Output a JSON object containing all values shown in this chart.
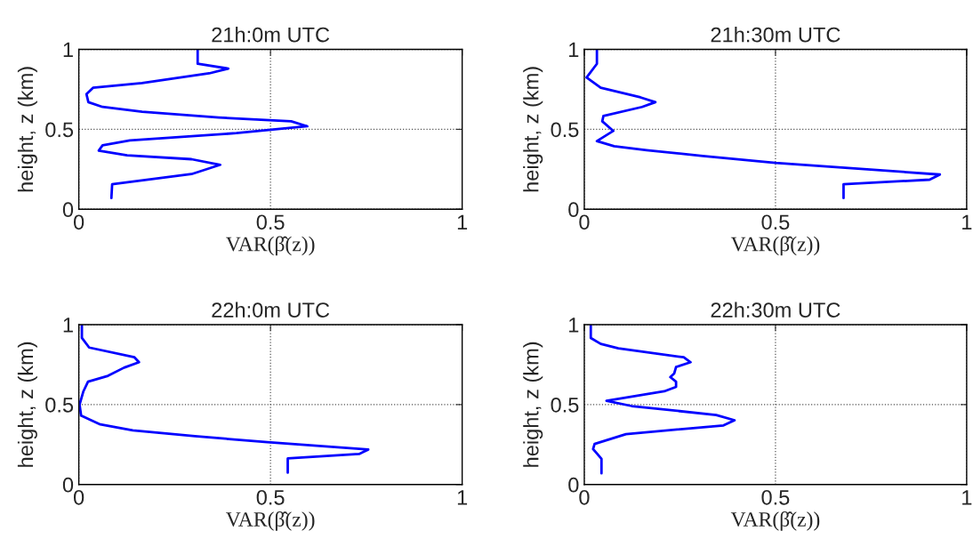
{
  "chart_data": [
    {
      "type": "line",
      "title": "21h:0m UTC",
      "xlabel": "VAR(β̂(z))",
      "ylabel": "height, z (km)",
      "color": "#0000ff",
      "xlim": [
        0,
        1
      ],
      "ylim": [
        0,
        1
      ],
      "xticks": [
        0,
        0.5,
        1
      ],
      "yticks": [
        0,
        0.5,
        1
      ],
      "grid": true,
      "x": [
        0.31,
        0.31,
        0.39,
        0.34,
        0.165,
        0.037,
        0.02,
        0.025,
        0.062,
        0.165,
        0.365,
        0.554,
        0.596,
        0.411,
        0.133,
        0.062,
        0.052,
        0.126,
        0.294,
        0.369,
        0.294,
        0.087,
        0.085
      ],
      "values": [
        1.0,
        0.91,
        0.88,
        0.85,
        0.79,
        0.76,
        0.72,
        0.67,
        0.64,
        0.61,
        0.574,
        0.55,
        0.519,
        0.476,
        0.43,
        0.4,
        0.367,
        0.337,
        0.313,
        0.278,
        0.22,
        0.157,
        0.07
      ]
    },
    {
      "type": "line",
      "title": "21h:30m UTC",
      "xlabel": "VAR(β̂(z))",
      "ylabel": "height, z (km)",
      "color": "#0000ff",
      "xlim": [
        0,
        1
      ],
      "ylim": [
        0,
        1
      ],
      "xticks": [
        0,
        0.5,
        1
      ],
      "yticks": [
        0,
        0.5,
        1
      ],
      "grid": true,
      "x": [
        0.033,
        0.033,
        0.006,
        0.043,
        0.147,
        0.186,
        0.151,
        0.05,
        0.047,
        0.076,
        0.033,
        0.078,
        0.163,
        0.31,
        0.5,
        0.682,
        0.93,
        0.903,
        0.678,
        0.678
      ],
      "values": [
        1.0,
        0.91,
        0.824,
        0.76,
        0.7,
        0.67,
        0.64,
        0.583,
        0.55,
        0.49,
        0.426,
        0.394,
        0.37,
        0.333,
        0.29,
        0.26,
        0.217,
        0.185,
        0.157,
        0.07
      ]
    },
    {
      "type": "line",
      "title": "22h:0m UTC",
      "xlabel": "VAR(β̂(z))",
      "ylabel": "height, z (km)",
      "color": "#0000ff",
      "xlim": [
        0,
        1
      ],
      "ylim": [
        0,
        1
      ],
      "xticks": [
        0,
        0.5,
        1
      ],
      "yticks": [
        0,
        0.5,
        1
      ],
      "grid": true,
      "x": [
        0.008,
        0.008,
        0.027,
        0.145,
        0.157,
        0.118,
        0.076,
        0.024,
        0.012,
        0.002,
        0.006,
        0.056,
        0.141,
        0.303,
        0.492,
        0.755,
        0.731,
        0.545,
        0.545
      ],
      "values": [
        1.0,
        0.917,
        0.857,
        0.796,
        0.765,
        0.731,
        0.68,
        0.643,
        0.583,
        0.5,
        0.431,
        0.376,
        0.339,
        0.302,
        0.265,
        0.219,
        0.191,
        0.163,
        0.074
      ]
    },
    {
      "type": "line",
      "title": "22h:30m UTC",
      "xlabel": "VAR(β̂(z))",
      "ylabel": "height, z (km)",
      "color": "#0000ff",
      "xlim": [
        0,
        1
      ],
      "ylim": [
        0,
        1
      ],
      "xticks": [
        0,
        0.5,
        1
      ],
      "yticks": [
        0,
        0.5,
        1
      ],
      "grid": true,
      "x": [
        0.017,
        0.017,
        0.043,
        0.089,
        0.26,
        0.278,
        0.24,
        0.235,
        0.225,
        0.24,
        0.24,
        0.209,
        0.058,
        0.124,
        0.345,
        0.393,
        0.364,
        0.109,
        0.027,
        0.023,
        0.045,
        0.045
      ],
      "values": [
        1.0,
        0.917,
        0.88,
        0.852,
        0.796,
        0.765,
        0.735,
        0.694,
        0.672,
        0.643,
        0.611,
        0.583,
        0.524,
        0.491,
        0.435,
        0.402,
        0.37,
        0.315,
        0.254,
        0.222,
        0.161,
        0.07
      ]
    }
  ]
}
